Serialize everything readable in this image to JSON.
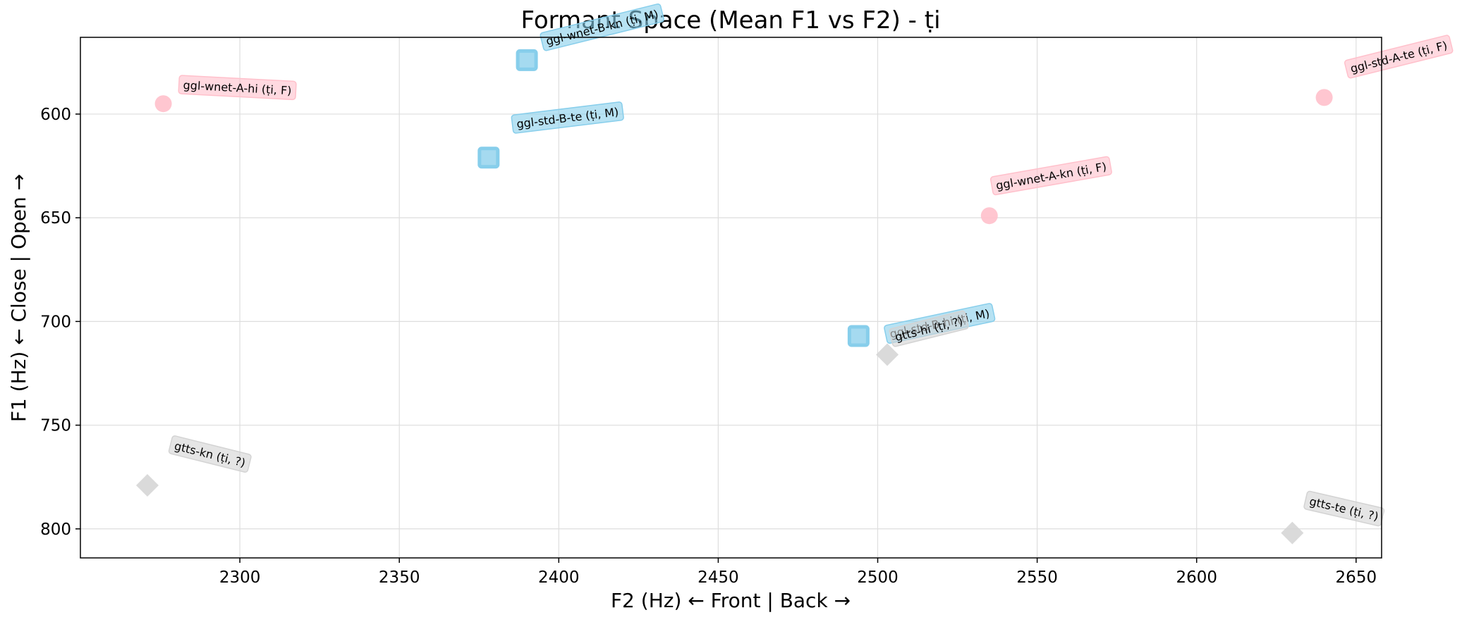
{
  "chart_data": {
    "type": "scatter",
    "title": "Formant Space (Mean F1 vs F2) - ṭi",
    "xlabel": "F2 (Hz) ← Front | Back →",
    "ylabel": "F1 (Hz) ← Close | Open →",
    "xlim": [
      2250,
      2658
    ],
    "ylim": [
      563,
      814
    ],
    "y_inverted": true,
    "xticks": [
      2300,
      2350,
      2400,
      2450,
      2500,
      2550,
      2600,
      2650
    ],
    "yticks": [
      600,
      650,
      700,
      750,
      800
    ],
    "grid": true,
    "points": [
      {
        "label": "ggl-wnet-A-hi (ṭi, F)",
        "x": 2276,
        "y": 595,
        "group": "F",
        "color": "#ffc0cb",
        "marker": "circle"
      },
      {
        "label": "ggl-wnet-B-kn (ṭi, M)",
        "x": 2390,
        "y": 574,
        "group": "M",
        "color": "#87ceeb",
        "marker": "square"
      },
      {
        "label": "ggl-std-B-te (ṭi, M)",
        "x": 2378,
        "y": 621,
        "group": "M",
        "color": "#87ceeb",
        "marker": "square"
      },
      {
        "label": "ggl-std-A-te (ṭi, F)",
        "x": 2640,
        "y": 592,
        "group": "F",
        "color": "#ffc0cb",
        "marker": "circle"
      },
      {
        "label": "ggl-wnet-A-kn (ṭi, F)",
        "x": 2535,
        "y": 649,
        "group": "F",
        "color": "#ffc0cb",
        "marker": "circle"
      },
      {
        "label": "ggl-std-B-hi (ṭi, M)",
        "x": 2494,
        "y": 707,
        "group": "M",
        "color": "#87ceeb",
        "marker": "square"
      },
      {
        "label": "gtts-hi (ṭi, ?)",
        "x": 2503,
        "y": 716,
        "group": "?",
        "color": "#d3d3d3",
        "marker": "diamond"
      },
      {
        "label": "gtts-kn (ṭi, ?)",
        "x": 2271,
        "y": 779,
        "group": "?",
        "color": "#d3d3d3",
        "marker": "diamond"
      },
      {
        "label": "gtts-te (ṭi, ?)",
        "x": 2630,
        "y": 802,
        "group": "?",
        "color": "#d3d3d3",
        "marker": "diamond"
      }
    ]
  }
}
